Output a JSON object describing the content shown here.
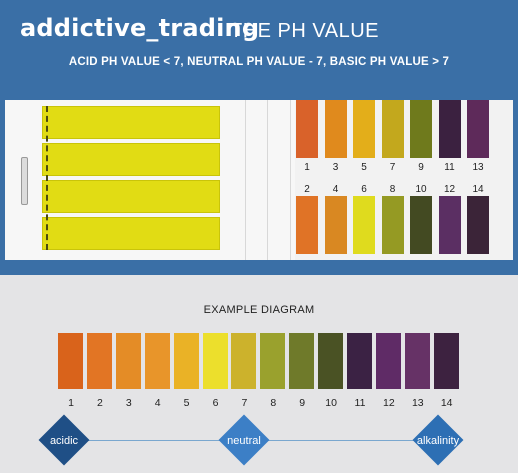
{
  "watermark": "addictive_trading",
  "header": {
    "title": "THE PH VALUE",
    "subtitle": "ACID PH VALUE < 7, NEUTRAL PH VALUE - 7, BASIC PH VALUE > 7"
  },
  "booklet": {
    "top_row": [
      {
        "label": "1",
        "color": "#d9622a"
      },
      {
        "label": "3",
        "color": "#e08a1d"
      },
      {
        "label": "5",
        "color": "#e3ae1a"
      },
      {
        "label": "7",
        "color": "#c3a81d"
      },
      {
        "label": "9",
        "color": "#6f7a1c"
      },
      {
        "label": "11",
        "color": "#3b2140"
      },
      {
        "label": "13",
        "color": "#5e2a5a"
      }
    ],
    "bottom_row": [
      {
        "label": "2",
        "color": "#e07326"
      },
      {
        "label": "4",
        "color": "#d98822"
      },
      {
        "label": "6",
        "color": "#dfdb1e"
      },
      {
        "label": "8",
        "color": "#959a23"
      },
      {
        "label": "10",
        "color": "#434a22"
      },
      {
        "label": "12",
        "color": "#5b2f63"
      },
      {
        "label": "14",
        "color": "#3b2438"
      }
    ]
  },
  "diagram": {
    "title": "EXAMPLE DIAGRAM",
    "scale": [
      {
        "label": "1",
        "color": "#d9631b"
      },
      {
        "label": "2",
        "color": "#e27524"
      },
      {
        "label": "3",
        "color": "#e48c26"
      },
      {
        "label": "4",
        "color": "#e8952a"
      },
      {
        "label": "5",
        "color": "#eab226"
      },
      {
        "label": "6",
        "color": "#ecdf2c"
      },
      {
        "label": "7",
        "color": "#ccb22c"
      },
      {
        "label": "8",
        "color": "#9aa12d"
      },
      {
        "label": "9",
        "color": "#6f7a2a"
      },
      {
        "label": "10",
        "color": "#4a5224"
      },
      {
        "label": "11",
        "color": "#3b2244"
      },
      {
        "label": "12",
        "color": "#5f2b66"
      },
      {
        "label": "13",
        "color": "#663266"
      },
      {
        "label": "14",
        "color": "#3d2240"
      }
    ],
    "markers": {
      "acidic": "acidic",
      "neutral": "neutral",
      "alkalinity": "alkalinity"
    },
    "marker_colors": {
      "acidic": "#1f4f86",
      "neutral": "#3c7fc6",
      "alkalinity": "#2d6fb4"
    }
  }
}
